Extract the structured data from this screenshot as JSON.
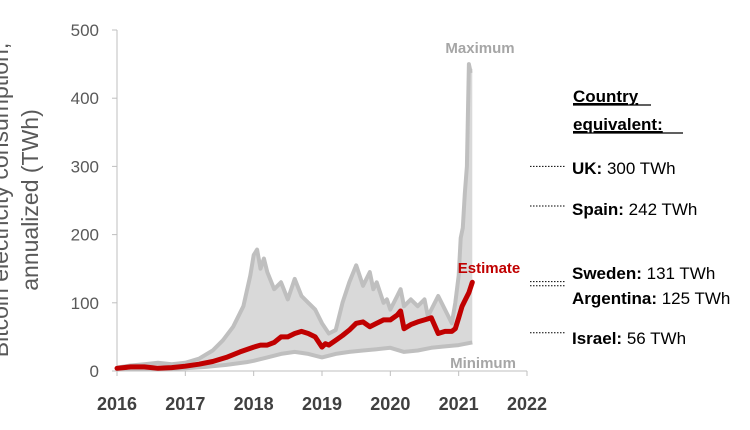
{
  "chart_data": {
    "type": "area",
    "ylabel_lines": [
      "Bitcoin electricity consumption,",
      "annualized (TWh)"
    ],
    "ylim": [
      0,
      500
    ],
    "yticks": [
      "0",
      "100",
      "200",
      "300",
      "400",
      "500"
    ],
    "ytick_values": [
      0,
      100,
      200,
      300,
      400,
      500
    ],
    "xlim": [
      2016,
      2022
    ],
    "xticks": [
      "2016",
      "2017",
      "2018",
      "2019",
      "2020",
      "2021",
      "2022"
    ],
    "xtick_values": [
      2016,
      2017,
      2018,
      2019,
      2020,
      2021,
      2022
    ],
    "series": [
      {
        "name": "Maximum",
        "color": "#bfbfbf",
        "x": [
          2016.0,
          2016.2,
          2016.4,
          2016.6,
          2016.8,
          2017.0,
          2017.2,
          2017.4,
          2017.55,
          2017.7,
          2017.85,
          2017.95,
          2018.0,
          2018.05,
          2018.1,
          2018.15,
          2018.2,
          2018.3,
          2018.4,
          2018.5,
          2018.6,
          2018.7,
          2018.8,
          2018.9,
          2019.0,
          2019.1,
          2019.2,
          2019.3,
          2019.4,
          2019.5,
          2019.55,
          2019.6,
          2019.7,
          2019.75,
          2019.8,
          2019.9,
          2019.95,
          2020.0,
          2020.1,
          2020.15,
          2020.2,
          2020.3,
          2020.4,
          2020.5,
          2020.55,
          2020.6,
          2020.7,
          2020.8,
          2020.85,
          2020.9,
          2020.95,
          2021.0,
          2021.03,
          2021.06,
          2021.09,
          2021.12,
          2021.15,
          2021.17,
          2021.2
        ],
        "values": [
          5,
          8,
          10,
          12,
          10,
          12,
          18,
          30,
          45,
          65,
          95,
          140,
          170,
          178,
          150,
          165,
          145,
          120,
          130,
          105,
          135,
          110,
          100,
          90,
          70,
          55,
          60,
          100,
          130,
          155,
          140,
          125,
          145,
          120,
          130,
          100,
          105,
          90,
          110,
          120,
          95,
          105,
          95,
          105,
          80,
          90,
          110,
          90,
          80,
          70,
          100,
          140,
          195,
          210,
          260,
          300,
          450,
          440,
          440
        ]
      },
      {
        "name": "Estimate",
        "color": "#c00000",
        "x": [
          2016.0,
          2016.2,
          2016.4,
          2016.6,
          2016.8,
          2017.0,
          2017.2,
          2017.4,
          2017.6,
          2017.8,
          2018.0,
          2018.1,
          2018.2,
          2018.3,
          2018.4,
          2018.5,
          2018.6,
          2018.7,
          2018.8,
          2018.9,
          2019.0,
          2019.05,
          2019.1,
          2019.2,
          2019.3,
          2019.4,
          2019.5,
          2019.6,
          2019.7,
          2019.8,
          2019.9,
          2020.0,
          2020.1,
          2020.15,
          2020.2,
          2020.3,
          2020.4,
          2020.5,
          2020.6,
          2020.7,
          2020.8,
          2020.9,
          2020.95,
          2021.0,
          2021.05,
          2021.1,
          2021.15,
          2021.2
        ],
        "values": [
          4,
          6,
          6,
          4,
          5,
          7,
          10,
          14,
          20,
          28,
          35,
          38,
          38,
          42,
          50,
          50,
          55,
          58,
          55,
          50,
          35,
          40,
          38,
          45,
          52,
          60,
          70,
          72,
          65,
          70,
          75,
          75,
          82,
          88,
          62,
          68,
          72,
          75,
          78,
          55,
          58,
          58,
          62,
          78,
          95,
          105,
          115,
          130
        ]
      },
      {
        "name": "Minimum",
        "color": "#bfbfbf",
        "x": [
          2016.0,
          2016.3,
          2016.6,
          2017.0,
          2017.3,
          2017.6,
          2017.9,
          2018.0,
          2018.2,
          2018.4,
          2018.6,
          2018.8,
          2019.0,
          2019.2,
          2019.4,
          2019.6,
          2019.8,
          2020.0,
          2020.2,
          2020.4,
          2020.6,
          2020.8,
          2021.0,
          2021.2
        ],
        "values": [
          3,
          3,
          3,
          4,
          6,
          9,
          13,
          15,
          20,
          25,
          28,
          25,
          20,
          25,
          28,
          30,
          32,
          34,
          28,
          30,
          34,
          36,
          38,
          42
        ]
      }
    ],
    "band_labels": {
      "max": "Maximum",
      "estimate": "Estimate",
      "min": "Minimum"
    },
    "reference_title": "Country equivalent:",
    "reference_title_lines": [
      "Country",
      "equivalent:"
    ],
    "references": [
      {
        "country": "UK:",
        "value": 300,
        "label": "300 TWh"
      },
      {
        "country": "Spain:",
        "value": 242,
        "label": "242 TWh"
      },
      {
        "country": "Sweden:",
        "value": 131,
        "label": "131 TWh"
      },
      {
        "country": "Argentina:",
        "value": 125,
        "label": "125 TWh"
      },
      {
        "country": "Israel:",
        "value": 56,
        "label": "56 TWh"
      }
    ],
    "grid": false,
    "colors": {
      "band_fill": "#d9d9d9",
      "max_min_line": "#bfbfbf",
      "estimate": "#c00000",
      "axis": "#bfbfbf"
    }
  }
}
